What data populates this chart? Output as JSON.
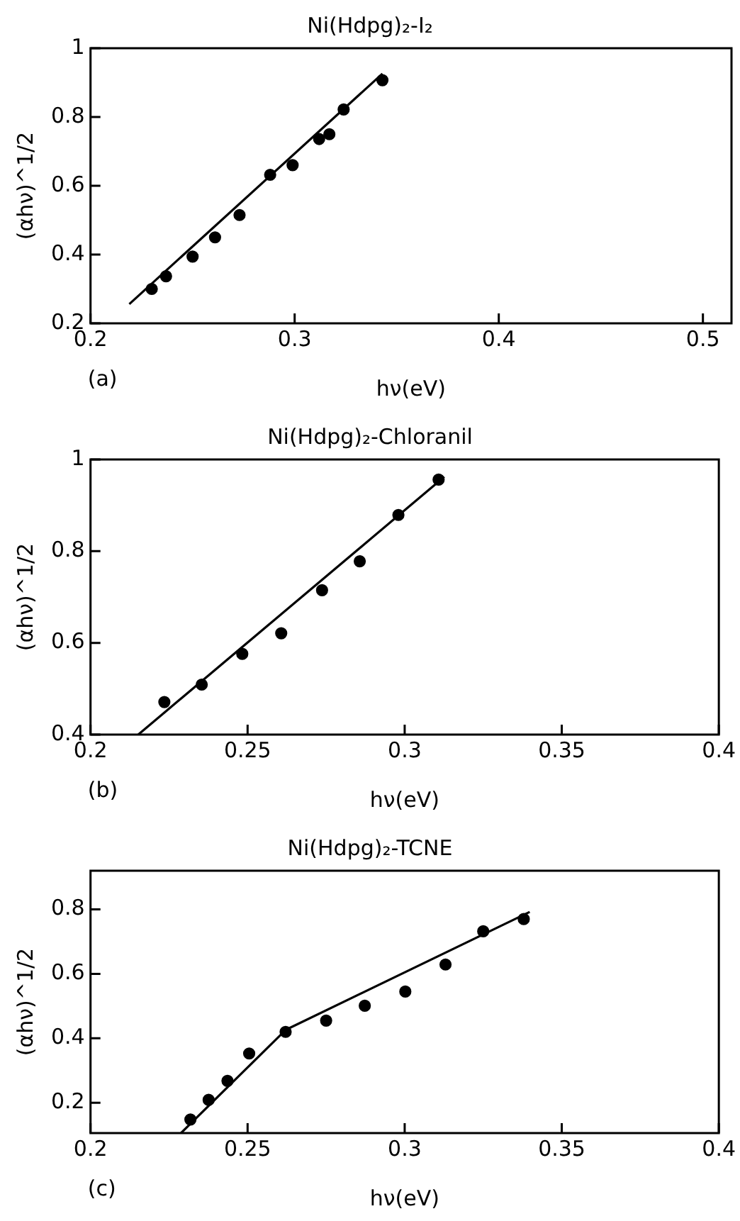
{
  "chart_data": [
    {
      "type": "scatter",
      "title": "Ni(Hdpg)₂-I₂",
      "xlabel": "hν(eV)",
      "ylabel": "(αhν)^1/2",
      "annotations": [
        "(a)"
      ],
      "xlim": [
        0.2,
        0.514
      ],
      "ylim": [
        0.2,
        1
      ],
      "xticks": [
        0.2,
        0.3,
        0.4,
        0.5
      ],
      "yticks": [
        0.2,
        0.4,
        0.6,
        0.8,
        1
      ],
      "grid": false,
      "legend": false,
      "series": [
        {
          "type": "scatter",
          "color": "#000000",
          "marker": "circle",
          "x": [
            0.23,
            0.237,
            0.25,
            0.261,
            0.273,
            0.288,
            0.299,
            0.312,
            0.317,
            0.324,
            0.343
          ],
          "values": [
            0.3,
            0.337,
            0.394,
            0.45,
            0.515,
            0.632,
            0.66,
            0.736,
            0.75,
            0.822,
            0.907
          ]
        },
        {
          "type": "line",
          "color": "#000000",
          "marker": "none",
          "line_style": "solid",
          "x": [
            0.219,
            0.343
          ],
          "values": [
            0.256,
            0.926
          ]
        }
      ]
    },
    {
      "type": "scatter",
      "title": "Ni(Hdpg)₂-Chloranil",
      "xlabel": "hν(eV)",
      "ylabel": "(αhν)^1/2",
      "annotations": [
        "(b)"
      ],
      "xlim": [
        0.2,
        0.4
      ],
      "ylim": [
        0.4,
        1
      ],
      "xticks": [
        0.2,
        0.25,
        0.3,
        0.35,
        0.4
      ],
      "yticks": [
        0.4,
        0.6,
        0.8,
        1
      ],
      "grid": false,
      "legend": false,
      "series": [
        {
          "type": "scatter",
          "color": "#000000",
          "marker": "circle",
          "x": [
            0.2235,
            0.2354,
            0.2483,
            0.2607,
            0.2737,
            0.2857,
            0.298,
            0.3108
          ],
          "values": [
            0.471,
            0.509,
            0.576,
            0.621,
            0.715,
            0.778,
            0.879,
            0.956
          ]
        },
        {
          "type": "line",
          "color": "#000000",
          "marker": "none",
          "line_style": "solid",
          "x": [
            0.2152,
            0.3126
          ],
          "values": [
            0.4,
            0.962
          ]
        }
      ]
    },
    {
      "type": "scatter",
      "title": "Ni(Hdpg)₂-TCNE",
      "xlabel": "hν(eV)",
      "ylabel": "(αhν)^1/2",
      "annotations": [
        "(c)"
      ],
      "xlim": [
        0.2,
        0.4
      ],
      "ylim": [
        0.106,
        0.92
      ],
      "xticks": [
        0.2,
        0.25,
        0.3,
        0.35,
        0.4
      ],
      "yticks": [
        0.2,
        0.4,
        0.6,
        0.8
      ],
      "grid": false,
      "legend": false,
      "series": [
        {
          "type": "scatter",
          "color": "#000000",
          "marker": "circle",
          "x": [
            0.2318,
            0.2376,
            0.2436,
            0.2505,
            0.2621,
            0.275,
            0.2873,
            0.3002,
            0.313,
            0.325,
            0.3379
          ],
          "values": [
            0.148,
            0.209,
            0.268,
            0.353,
            0.42,
            0.455,
            0.501,
            0.545,
            0.629,
            0.732,
            0.77
          ]
        },
        {
          "type": "line",
          "color": "#000000",
          "marker": "none",
          "line_style": "solid",
          "x": [
            0.2288,
            0.2621,
            0.3398
          ],
          "values": [
            0.106,
            0.426,
            0.792
          ]
        }
      ]
    }
  ]
}
